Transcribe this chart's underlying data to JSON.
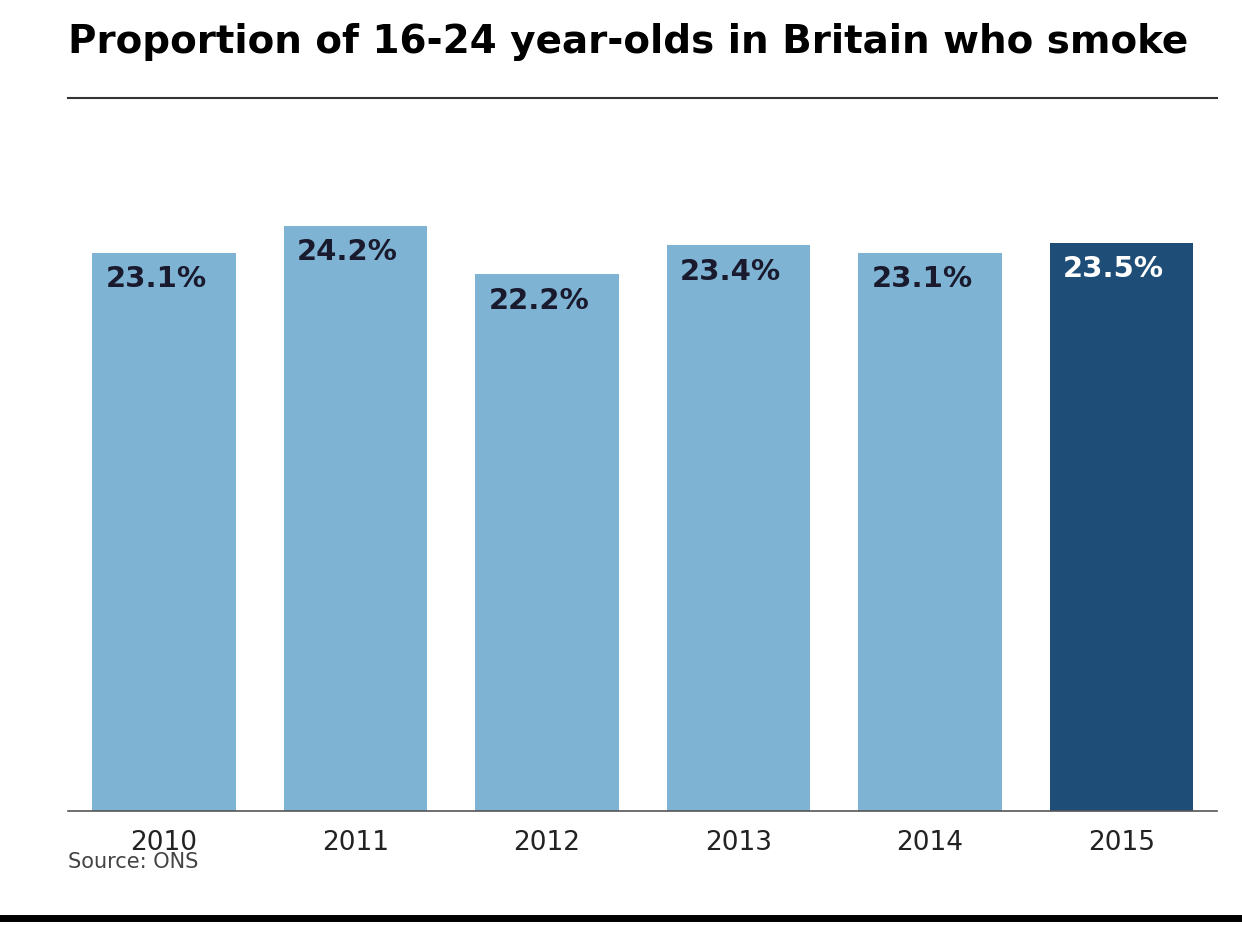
{
  "title": "Proportion of 16-24 year-olds in Britain who smoke",
  "categories": [
    "2010",
    "2011",
    "2012",
    "2013",
    "2014",
    "2015"
  ],
  "values": [
    23.1,
    24.2,
    22.2,
    23.4,
    23.1,
    23.5
  ],
  "labels": [
    "23.1%",
    "24.2%",
    "22.2%",
    "23.4%",
    "23.1%",
    "23.5%"
  ],
  "bar_colors": [
    "#7fb3d3",
    "#7fb3d3",
    "#7fb3d3",
    "#7fb3d3",
    "#7fb3d3",
    "#1e4d78"
  ],
  "label_colors": [
    "#1a1a2e",
    "#1a1a2e",
    "#1a1a2e",
    "#1a1a2e",
    "#1a1a2e",
    "#ffffff"
  ],
  "source_text": "Source: ONS",
  "background_color": "#ffffff",
  "ylim_max": 27,
  "title_fontsize": 28,
  "label_fontsize": 21,
  "tick_fontsize": 19,
  "source_fontsize": 15,
  "pa_box_color": "#cc1111",
  "pa_text_color": "#ffffff",
  "bar_width": 0.75
}
